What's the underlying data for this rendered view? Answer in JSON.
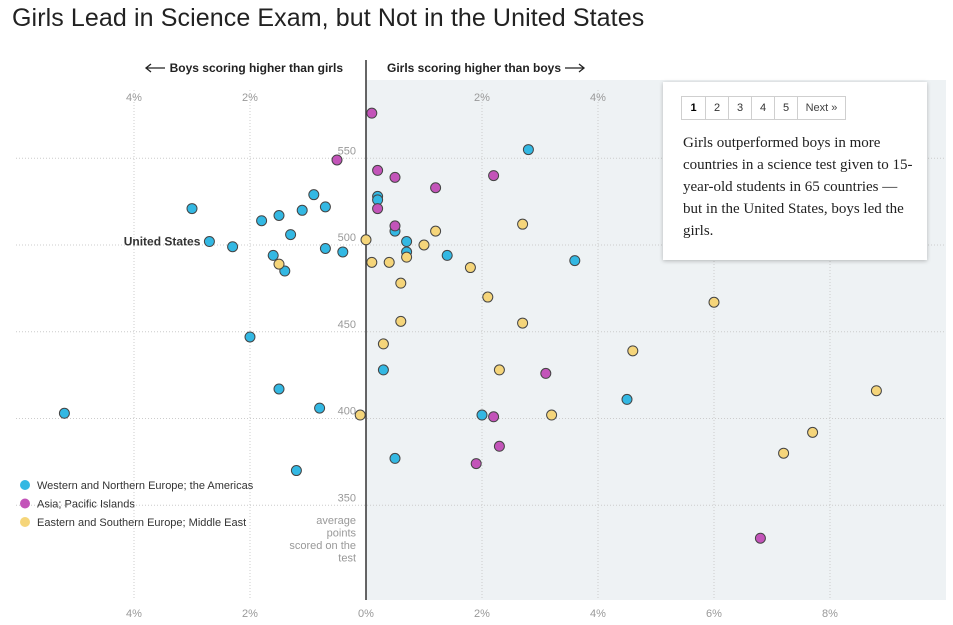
{
  "title": "Girls Lead in Science Exam, but Not in the United States",
  "direction_labels": {
    "left": "Boys scoring higher than girls",
    "right": "Girls scoring higher than boys"
  },
  "pager": {
    "pages": [
      "1",
      "2",
      "3",
      "4",
      "5"
    ],
    "active": "1",
    "next_label": "Next »"
  },
  "panel_text": "Girls outperformed boys in more countries in a science test given to 15-year-old students in 65 countries — but in the United States, boys led the girls.",
  "colors": {
    "western": "#33b8e3",
    "asia": "#c354b9",
    "eastern": "#f5d57a",
    "shade": "#eef2f4",
    "zero_line": "#333333"
  },
  "chart_data": {
    "type": "scatter",
    "xlabel": "",
    "ylabel": "average points scored on the test",
    "xlim": [
      -6.3,
      10
    ],
    "ylim": [
      310,
      600
    ],
    "x_unit": "percent",
    "top_ticks": [
      {
        "value": -4,
        "label": "4%"
      },
      {
        "value": -2,
        "label": "2%"
      },
      {
        "value": 2,
        "label": "2%"
      },
      {
        "value": 4,
        "label": "4%"
      }
    ],
    "bottom_ticks": [
      {
        "value": -4,
        "label": "4%"
      },
      {
        "value": -2,
        "label": "2%"
      },
      {
        "value": 0,
        "label": "0%"
      },
      {
        "value": 2,
        "label": "2%"
      },
      {
        "value": 4,
        "label": "4%"
      },
      {
        "value": 6,
        "label": "6%"
      },
      {
        "value": 8,
        "label": "8%"
      }
    ],
    "y_ticks": [
      350,
      400,
      450,
      500,
      550
    ],
    "y_axis_title": "average points scored on the test",
    "legend": [
      {
        "key": "western",
        "label": "Western and Northern Europe; the Americas"
      },
      {
        "key": "asia",
        "label": "Asia; Pacific Islands"
      },
      {
        "key": "eastern",
        "label": "Eastern and Southern Europe; Middle East"
      }
    ],
    "annotations": [
      {
        "label": "United States",
        "x": -2.7,
        "y": 502
      }
    ],
    "series": [
      {
        "key": "western",
        "name": "Western and Northern Europe; the Americas",
        "points": [
          [
            2.8,
            555
          ],
          [
            0.2,
            528
          ],
          [
            0.2,
            526
          ],
          [
            -3.0,
            521
          ],
          [
            -0.9,
            529
          ],
          [
            -0.7,
            522
          ],
          [
            -1.5,
            517
          ],
          [
            -1.1,
            520
          ],
          [
            -1.8,
            514
          ],
          [
            -1.3,
            506
          ],
          [
            0.5,
            508
          ],
          [
            0.7,
            502
          ],
          [
            0.7,
            496
          ],
          [
            -2.7,
            502
          ],
          [
            -2.3,
            499
          ],
          [
            -0.7,
            498
          ],
          [
            -0.4,
            496
          ],
          [
            -1.6,
            494
          ],
          [
            -1.4,
            485
          ],
          [
            1.4,
            494
          ],
          [
            3.6,
            491
          ],
          [
            -2.0,
            447
          ],
          [
            0.3,
            428
          ],
          [
            -1.5,
            417
          ],
          [
            4.5,
            411
          ],
          [
            -0.8,
            406
          ],
          [
            -5.2,
            403
          ],
          [
            2.0,
            402
          ],
          [
            0.5,
            377
          ],
          [
            -1.2,
            370
          ]
        ]
      },
      {
        "key": "asia",
        "name": "Asia; Pacific Islands",
        "points": [
          [
            0.1,
            576
          ],
          [
            -0.5,
            549
          ],
          [
            0.2,
            543
          ],
          [
            0.5,
            539
          ],
          [
            2.2,
            540
          ],
          [
            1.2,
            533
          ],
          [
            0.2,
            521
          ],
          [
            0.5,
            511
          ],
          [
            3.1,
            426
          ],
          [
            2.2,
            401
          ],
          [
            2.3,
            384
          ],
          [
            1.9,
            374
          ],
          [
            6.8,
            331
          ]
        ]
      },
      {
        "key": "eastern",
        "name": "Eastern and Southern Europe; Middle East",
        "points": [
          [
            0.0,
            503
          ],
          [
            1.2,
            508
          ],
          [
            1.0,
            500
          ],
          [
            2.7,
            512
          ],
          [
            0.7,
            493
          ],
          [
            0.4,
            490
          ],
          [
            0.1,
            490
          ],
          [
            -1.5,
            489
          ],
          [
            1.8,
            487
          ],
          [
            0.6,
            478
          ],
          [
            2.1,
            470
          ],
          [
            6.0,
            467
          ],
          [
            2.7,
            455
          ],
          [
            0.6,
            456
          ],
          [
            0.3,
            443
          ],
          [
            4.6,
            439
          ],
          [
            2.3,
            428
          ],
          [
            8.8,
            416
          ],
          [
            -0.1,
            402
          ],
          [
            3.2,
            402
          ],
          [
            7.7,
            392
          ],
          [
            7.2,
            380
          ]
        ]
      }
    ]
  }
}
